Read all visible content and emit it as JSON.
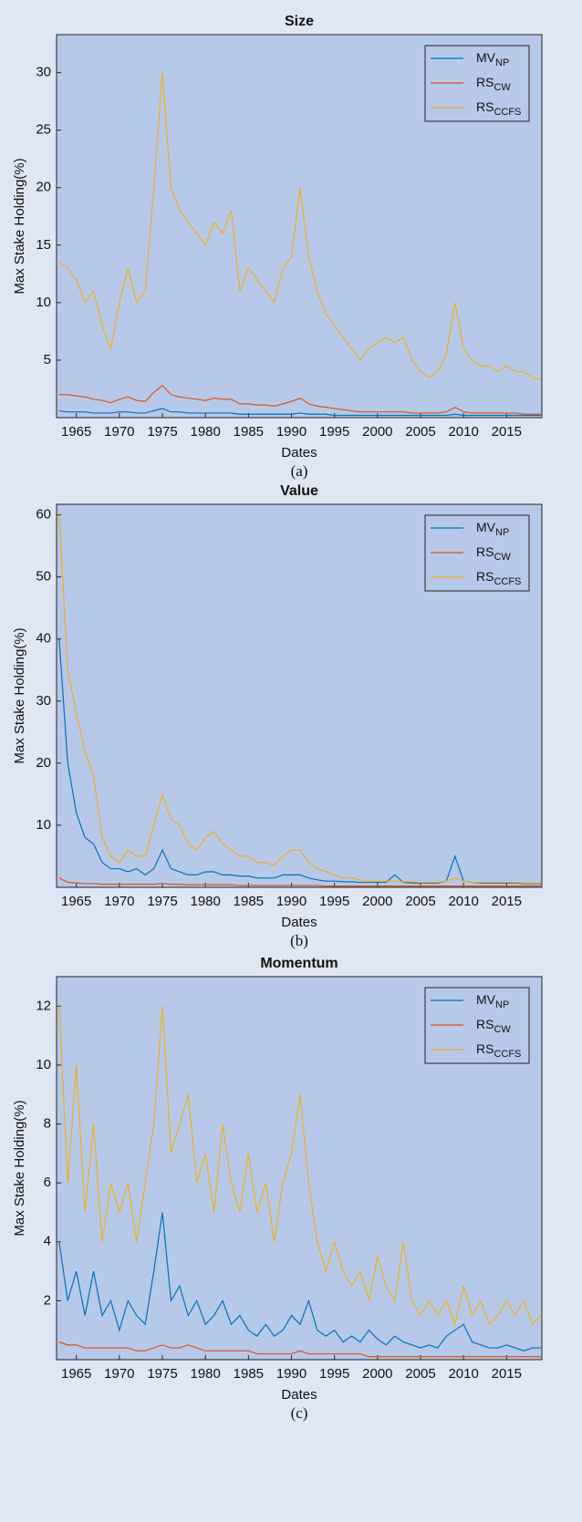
{
  "chart_data": [
    {
      "type": "line",
      "title": "Size",
      "xlabel": "Dates",
      "ylabel": "Max Stake Holding(%)",
      "caption": "(a)",
      "x": [
        1963,
        1964,
        1965,
        1966,
        1967,
        1968,
        1969,
        1970,
        1971,
        1972,
        1973,
        1974,
        1975,
        1976,
        1977,
        1978,
        1979,
        1980,
        1981,
        1982,
        1983,
        1984,
        1985,
        1986,
        1987,
        1988,
        1989,
        1990,
        1991,
        1992,
        1993,
        1994,
        1995,
        1996,
        1997,
        1998,
        1999,
        2000,
        2001,
        2002,
        2003,
        2004,
        2005,
        2006,
        2007,
        2008,
        2009,
        2010,
        2011,
        2012,
        2013,
        2014,
        2015,
        2016,
        2017,
        2018,
        2019
      ],
      "xlim": [
        1962.7,
        2019.1
      ],
      "xticks": [
        1965,
        1970,
        1975,
        1980,
        1985,
        1990,
        1995,
        2000,
        2005,
        2010,
        2015
      ],
      "ylim": [
        0,
        33.3
      ],
      "yticks": [
        5,
        10,
        15,
        20,
        25,
        30
      ],
      "legend": "northeast",
      "series": [
        {
          "name": "MV",
          "name_subscript": "NP",
          "color": "#0072bd",
          "values": [
            0.6,
            0.5,
            0.5,
            0.5,
            0.4,
            0.4,
            0.4,
            0.5,
            0.5,
            0.4,
            0.4,
            0.6,
            0.8,
            0.5,
            0.5,
            0.4,
            0.4,
            0.4,
            0.4,
            0.4,
            0.4,
            0.3,
            0.3,
            0.3,
            0.3,
            0.3,
            0.3,
            0.3,
            0.4,
            0.3,
            0.3,
            0.3,
            0.2,
            0.2,
            0.2,
            0.2,
            0.2,
            0.2,
            0.2,
            0.2,
            0.2,
            0.2,
            0.2,
            0.2,
            0.2,
            0.2,
            0.3,
            0.2,
            0.2,
            0.2,
            0.2,
            0.2,
            0.2,
            0.2,
            0.2,
            0.2,
            0.2
          ]
        },
        {
          "name": "RS",
          "name_subscript": "CW",
          "color": "#d95319",
          "values": [
            2.0,
            2.0,
            1.9,
            1.8,
            1.6,
            1.5,
            1.3,
            1.6,
            1.8,
            1.5,
            1.4,
            2.2,
            2.8,
            2.0,
            1.8,
            1.7,
            1.6,
            1.5,
            1.7,
            1.6,
            1.6,
            1.2,
            1.2,
            1.1,
            1.1,
            1.0,
            1.2,
            1.4,
            1.7,
            1.2,
            1.0,
            0.9,
            0.8,
            0.7,
            0.6,
            0.5,
            0.5,
            0.5,
            0.5,
            0.5,
            0.5,
            0.4,
            0.4,
            0.4,
            0.4,
            0.5,
            0.9,
            0.5,
            0.4,
            0.4,
            0.4,
            0.4,
            0.4,
            0.4,
            0.3,
            0.3,
            0.3
          ]
        },
        {
          "name": "RS",
          "name_subscript": "CCFS",
          "color": "#edb120",
          "values": [
            13.5,
            13,
            12,
            10,
            11,
            8,
            6,
            10,
            13,
            10,
            11,
            20,
            30,
            20,
            18,
            17,
            16,
            15,
            17,
            16,
            18,
            11,
            13,
            12,
            11,
            10,
            13,
            14,
            20,
            14,
            11,
            9,
            8,
            7,
            6,
            5,
            6,
            6.5,
            7,
            6.5,
            7,
            5,
            4,
            3.5,
            4,
            5.5,
            10,
            6,
            5,
            4.5,
            4.5,
            4,
            4.5,
            4,
            4,
            3.5,
            3.3
          ]
        }
      ]
    },
    {
      "type": "line",
      "title": "Value",
      "xlabel": "Dates",
      "ylabel": "Max Stake Holding(%)",
      "caption": "(b)",
      "x": [
        1963,
        1964,
        1965,
        1966,
        1967,
        1968,
        1969,
        1970,
        1971,
        1972,
        1973,
        1974,
        1975,
        1976,
        1977,
        1978,
        1979,
        1980,
        1981,
        1982,
        1983,
        1984,
        1985,
        1986,
        1987,
        1988,
        1989,
        1990,
        1991,
        1992,
        1993,
        1994,
        1995,
        1996,
        1997,
        1998,
        1999,
        2000,
        2001,
        2002,
        2003,
        2004,
        2005,
        2006,
        2007,
        2008,
        2009,
        2010,
        2011,
        2012,
        2013,
        2014,
        2015,
        2016,
        2017,
        2018,
        2019
      ],
      "xlim": [
        1962.7,
        2019.1
      ],
      "xticks": [
        1965,
        1970,
        1975,
        1980,
        1985,
        1990,
        1995,
        2000,
        2005,
        2010,
        2015
      ],
      "ylim": [
        0,
        61.7
      ],
      "yticks": [
        10,
        20,
        30,
        40,
        50,
        60
      ],
      "legend": "northeast",
      "series": [
        {
          "name": "MV",
          "name_subscript": "NP",
          "color": "#0072bd",
          "values": [
            40,
            20,
            12,
            8,
            7,
            4,
            3,
            3,
            2.5,
            3,
            2,
            3,
            6,
            3,
            2.5,
            2,
            2,
            2.5,
            2.5,
            2,
            2,
            1.8,
            1.8,
            1.5,
            1.5,
            1.5,
            2,
            2,
            2,
            1.5,
            1.2,
            1,
            1,
            0.9,
            0.9,
            0.8,
            0.8,
            0.8,
            0.8,
            2,
            0.8,
            0.7,
            0.7,
            0.7,
            0.7,
            1,
            5,
            1,
            0.8,
            0.7,
            0.7,
            0.7,
            0.7,
            0.7,
            0.6,
            0.6,
            0.6
          ]
        },
        {
          "name": "RS",
          "name_subscript": "CW",
          "color": "#d95319",
          "values": [
            1.5,
            0.8,
            0.7,
            0.6,
            0.6,
            0.5,
            0.5,
            0.5,
            0.5,
            0.5,
            0.5,
            0.5,
            0.6,
            0.5,
            0.5,
            0.4,
            0.4,
            0.4,
            0.4,
            0.4,
            0.4,
            0.3,
            0.3,
            0.3,
            0.3,
            0.3,
            0.3,
            0.3,
            0.3,
            0.3,
            0.3,
            0.2,
            0.2,
            0.2,
            0.2,
            0.2,
            0.2,
            0.2,
            0.2,
            0.2,
            0.2,
            0.2,
            0.2,
            0.2,
            0.2,
            0.2,
            0.2,
            0.2,
            0.2,
            0.2,
            0.2,
            0.2,
            0.2,
            0.2,
            0.2,
            0.2,
            0.2
          ]
        },
        {
          "name": "RS",
          "name_subscript": "CCFS",
          "color": "#edb120",
          "values": [
            60,
            35,
            28,
            22,
            18,
            8,
            5,
            4,
            6,
            5,
            5,
            10,
            15,
            11,
            10,
            7,
            6,
            8,
            9,
            7,
            6,
            5,
            5,
            4,
            4,
            3.5,
            5,
            6,
            6,
            4,
            3,
            2.5,
            2,
            1.5,
            1.5,
            1.2,
            1,
            1,
            1,
            1,
            0.9,
            0.9,
            0.8,
            0.8,
            0.8,
            1,
            1.5,
            1,
            0.8,
            0.8,
            0.8,
            0.8,
            0.8,
            0.8,
            0.7,
            0.7,
            0.7
          ]
        }
      ]
    },
    {
      "type": "line",
      "title": "Momentum",
      "xlabel": "Dates",
      "ylabel": "Max Stake Holding(%)",
      "caption": "(c)",
      "x": [
        1963,
        1964,
        1965,
        1966,
        1967,
        1968,
        1969,
        1970,
        1971,
        1972,
        1973,
        1974,
        1975,
        1976,
        1977,
        1978,
        1979,
        1980,
        1981,
        1982,
        1983,
        1984,
        1985,
        1986,
        1987,
        1988,
        1989,
        1990,
        1991,
        1992,
        1993,
        1994,
        1995,
        1996,
        1997,
        1998,
        1999,
        2000,
        2001,
        2002,
        2003,
        2004,
        2005,
        2006,
        2007,
        2008,
        2009,
        2010,
        2011,
        2012,
        2013,
        2014,
        2015,
        2016,
        2017,
        2018,
        2019
      ],
      "xlim": [
        1962.7,
        2019.1
      ],
      "xticks": [
        1965,
        1970,
        1975,
        1980,
        1985,
        1990,
        1995,
        2000,
        2005,
        2010,
        2015
      ],
      "ylim": [
        0,
        13
      ],
      "yticks": [
        2,
        4,
        6,
        8,
        10,
        12
      ],
      "legend": "northeast",
      "series": [
        {
          "name": "MV",
          "name_subscript": "NP",
          "color": "#0072bd",
          "values": [
            4,
            2,
            3,
            1.5,
            3,
            1.5,
            2,
            1,
            2,
            1.5,
            1.2,
            3,
            5,
            2,
            2.5,
            1.5,
            2,
            1.2,
            1.5,
            2,
            1.2,
            1.5,
            1,
            0.8,
            1.2,
            0.8,
            1,
            1.5,
            1.2,
            2,
            1,
            0.8,
            1,
            0.6,
            0.8,
            0.6,
            1,
            0.7,
            0.5,
            0.8,
            0.6,
            0.5,
            0.4,
            0.5,
            0.4,
            0.8,
            1,
            1.2,
            0.6,
            0.5,
            0.4,
            0.4,
            0.5,
            0.4,
            0.3,
            0.4,
            0.4
          ]
        },
        {
          "name": "RS",
          "name_subscript": "CW",
          "color": "#d95319",
          "values": [
            0.6,
            0.5,
            0.5,
            0.4,
            0.4,
            0.4,
            0.4,
            0.4,
            0.4,
            0.3,
            0.3,
            0.4,
            0.5,
            0.4,
            0.4,
            0.5,
            0.4,
            0.3,
            0.3,
            0.3,
            0.3,
            0.3,
            0.3,
            0.2,
            0.2,
            0.2,
            0.2,
            0.2,
            0.3,
            0.2,
            0.2,
            0.2,
            0.2,
            0.2,
            0.2,
            0.2,
            0.1,
            0.1,
            0.1,
            0.1,
            0.1,
            0.1,
            0.1,
            0.1,
            0.1,
            0.1,
            0.1,
            0.1,
            0.1,
            0.1,
            0.1,
            0.1,
            0.1,
            0.1,
            0.1,
            0.1,
            0.1
          ]
        },
        {
          "name": "RS",
          "name_subscript": "CCFS",
          "color": "#edb120",
          "values": [
            12,
            6,
            10,
            5,
            8,
            4,
            6,
            5,
            6,
            4,
            6,
            8,
            12,
            7,
            8,
            9,
            6,
            7,
            5,
            8,
            6,
            5,
            7,
            5,
            6,
            4,
            6,
            7,
            9,
            6,
            4,
            3,
            4,
            3,
            2.5,
            3,
            2,
            3.5,
            2.5,
            2,
            4,
            2,
            1.5,
            2,
            1.5,
            2,
            1.2,
            2.5,
            1.5,
            2,
            1.2,
            1.5,
            2,
            1.5,
            2,
            1.2,
            1.5
          ]
        }
      ]
    }
  ]
}
